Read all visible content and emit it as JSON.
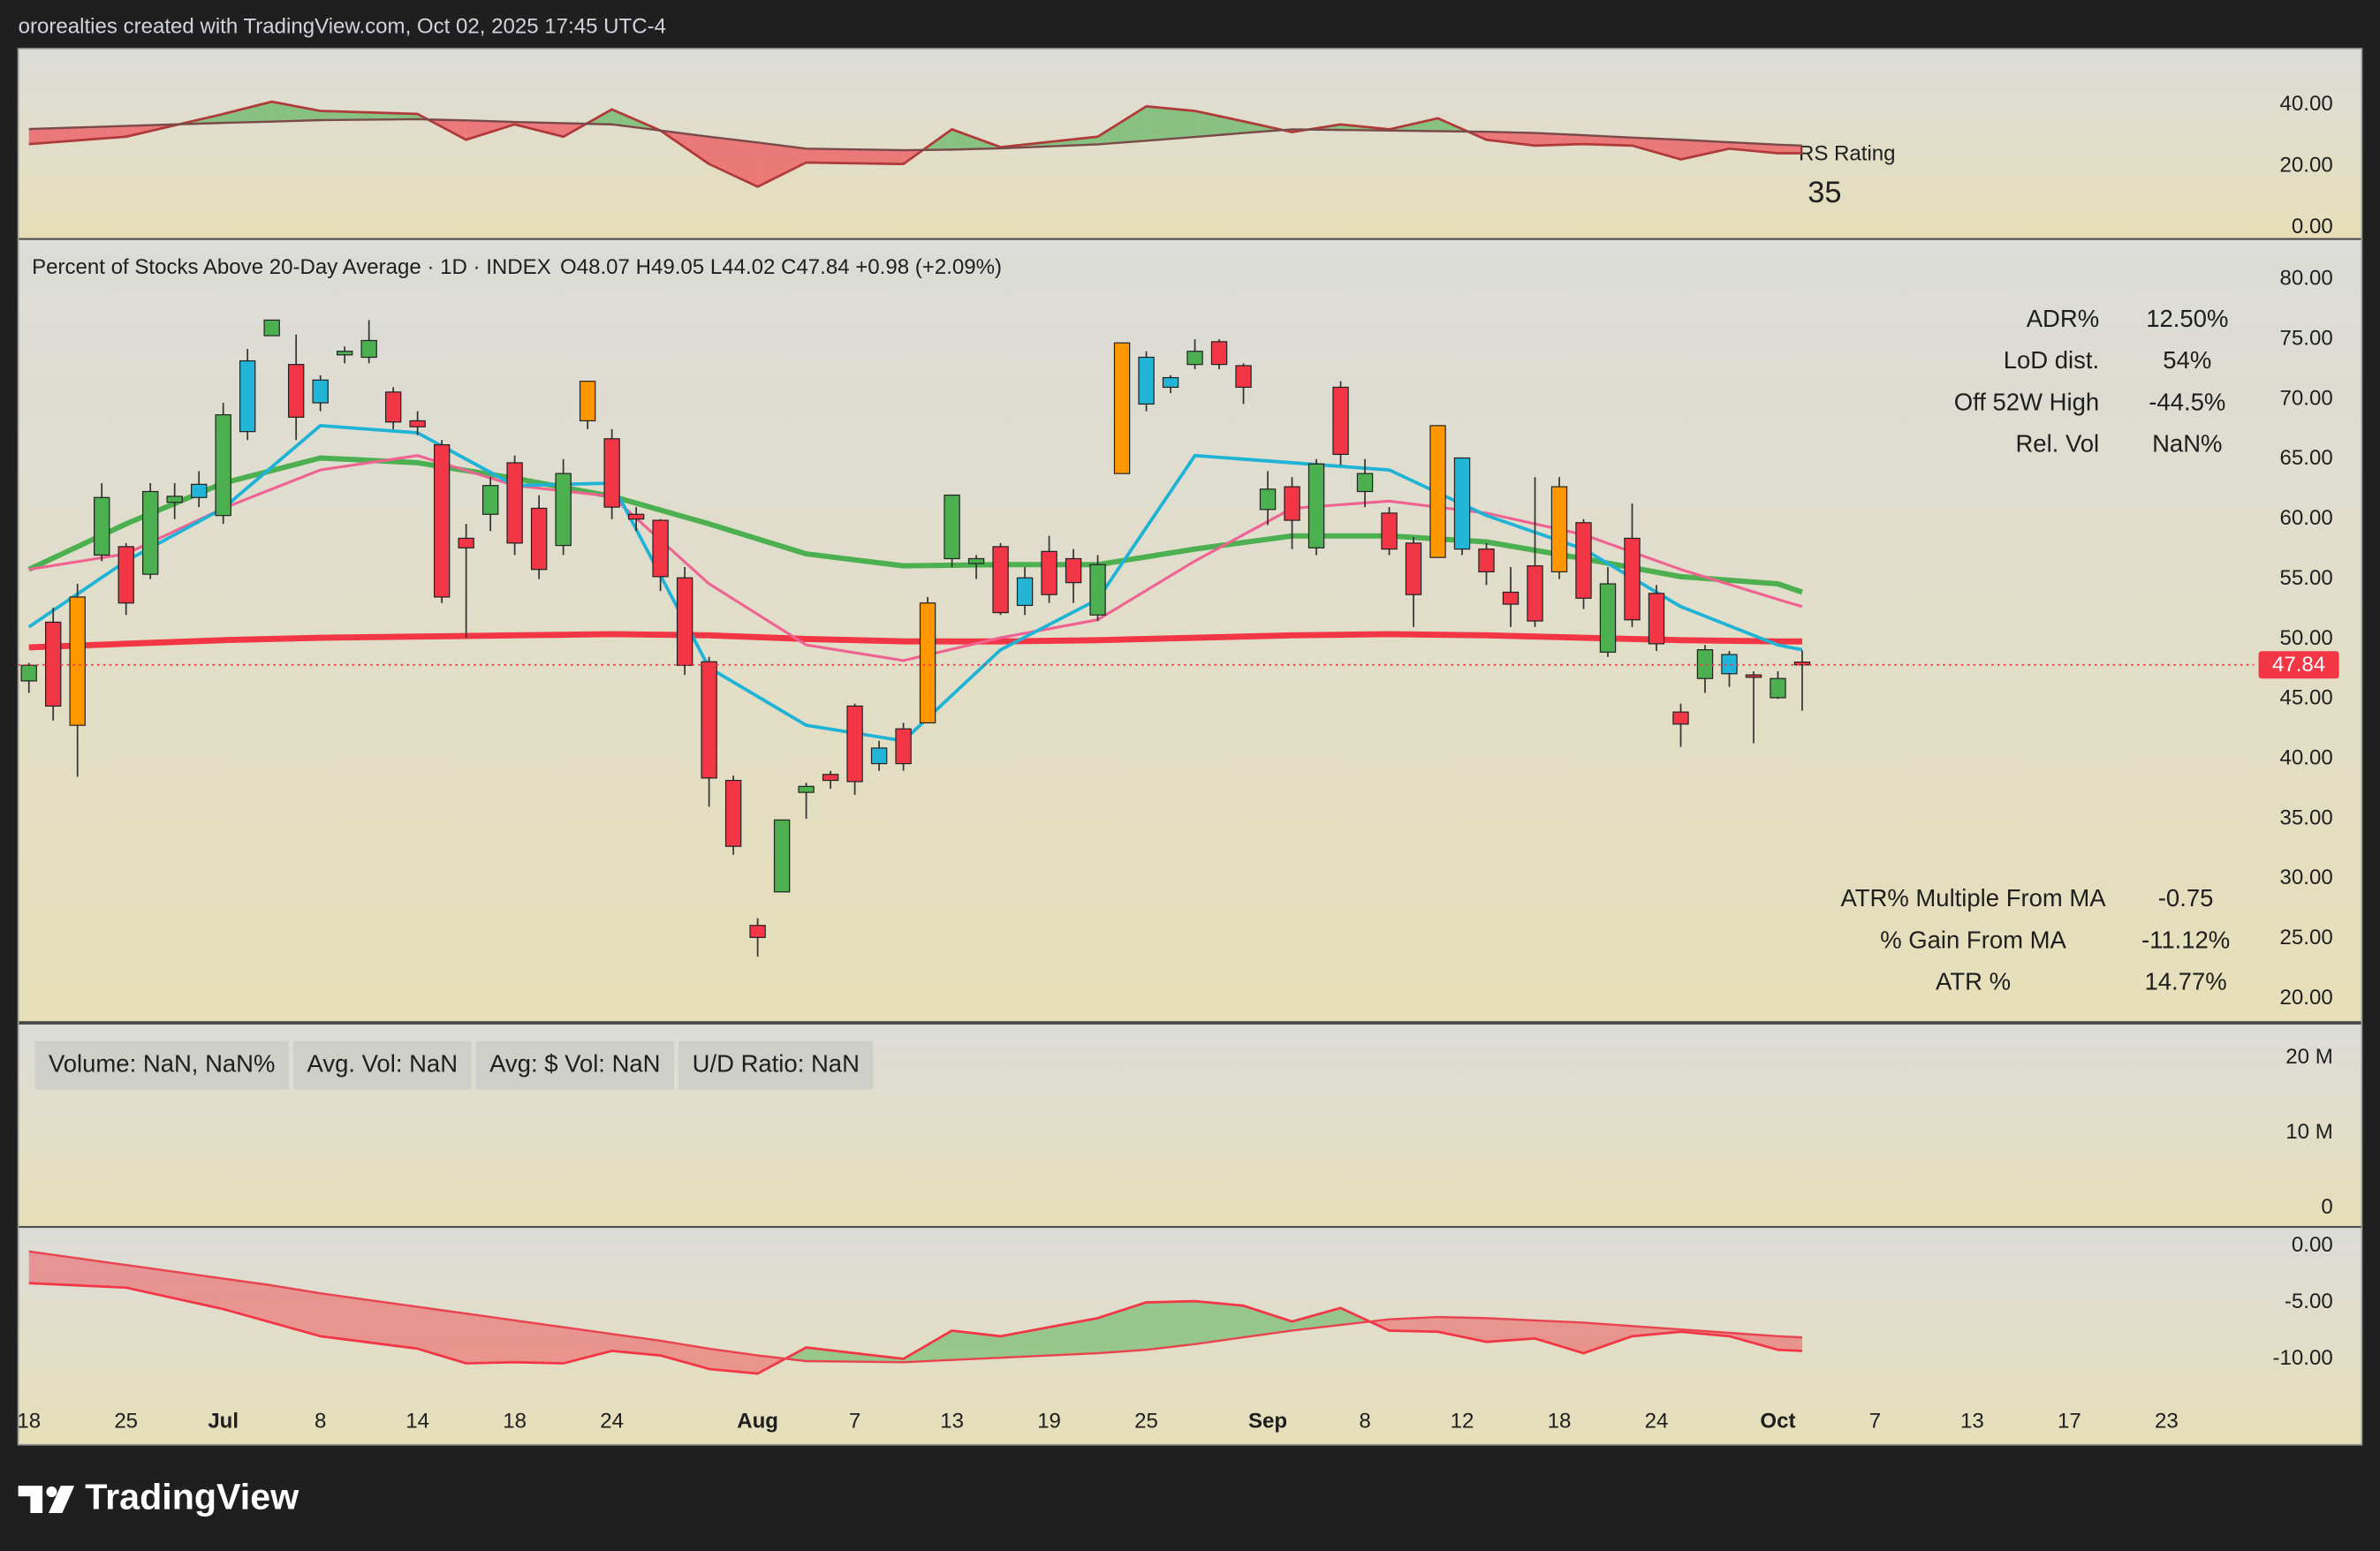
{
  "header": {
    "attribution": "ororealties created with TradingView.com, Oct 02, 2025 17:45 UTC-4"
  },
  "footer": {
    "logo": "TradingView"
  },
  "chart_data": [
    {
      "type": "area-between",
      "rating_label": "RS Rating",
      "rating": 35,
      "x": [
        0,
        4,
        8,
        10,
        12,
        16,
        18,
        20,
        22,
        24,
        26,
        28,
        30,
        32,
        36,
        38,
        40,
        44,
        46,
        48,
        50,
        52,
        54,
        56,
        58,
        60,
        62,
        64,
        66,
        68,
        70,
        72,
        73
      ],
      "xlim": [
        -0.44,
        91.6
      ],
      "ylim": [
        -3.5,
        58.3
      ],
      "yticks": [
        {
          "value": 40,
          "label": "40.00"
        },
        {
          "value": 20,
          "label": "20.00"
        },
        {
          "value": 0,
          "label": "0.00"
        }
      ],
      "fill_up": "#4caf5099",
      "fill_down": "#f2364599",
      "series": [
        {
          "color": "#b03a3a",
          "values": [
            27.2,
            29.6,
            37.0,
            41.0,
            38.0,
            37.0,
            28.6,
            33.6,
            29.6,
            38.5,
            31.6,
            20.7,
            13.3,
            21.2,
            20.7,
            32.0,
            26.2,
            29.6,
            39.5,
            38.0,
            34.6,
            31.1,
            33.6,
            32.0,
            35.6,
            28.6,
            26.7,
            27.2,
            26.7,
            22.2,
            25.7,
            24.2,
            24.2
          ]
        },
        {
          "color": "#7a4a4a",
          "values": [
            32.1,
            33.1,
            34.1,
            34.5,
            35.0,
            35.3,
            34.9,
            34.4,
            34.0,
            33.6,
            31.6,
            29.6,
            27.7,
            25.7,
            25.2,
            25.4,
            25.8,
            27.1,
            28.3,
            29.5,
            30.8,
            32.0,
            31.8,
            31.6,
            31.4,
            31.2,
            30.8,
            30.1,
            29.3,
            28.6,
            27.8,
            27.0,
            26.7
          ]
        }
      ]
    },
    {
      "type": "candlestick",
      "title": "Percent of Stocks Above 20-Day Average · 1D · INDEX",
      "ohlc_label": "O48.07  H49.05  L44.02  C47.84  +0.98 (+2.09%)",
      "xlim": [
        -0.44,
        91.6
      ],
      "ylim": [
        18.1,
        83.3
      ],
      "yticks": [
        {
          "value": 80,
          "label": "80.00"
        },
        {
          "value": 75,
          "label": "75.00"
        },
        {
          "value": 70,
          "label": "70.00"
        },
        {
          "value": 65,
          "label": "65.00"
        },
        {
          "value": 60,
          "label": "60.00"
        },
        {
          "value": 55,
          "label": "55.00"
        },
        {
          "value": 50,
          "label": "50.00"
        },
        {
          "value": 45,
          "label": "45.00"
        },
        {
          "value": 40,
          "label": "40.00"
        },
        {
          "value": 35,
          "label": "35.00"
        },
        {
          "value": 30,
          "label": "30.00"
        },
        {
          "value": 25,
          "label": "25.00"
        },
        {
          "value": 20,
          "label": "20.00"
        }
      ],
      "xticks": [
        {
          "value": 0,
          "label": "18"
        },
        {
          "value": 4,
          "label": "25"
        },
        {
          "value": 8,
          "label": "Jul"
        },
        {
          "value": 12,
          "label": "8"
        },
        {
          "value": 16,
          "label": "14"
        },
        {
          "value": 20,
          "label": "18"
        },
        {
          "value": 24,
          "label": "24"
        },
        {
          "value": 30,
          "label": "Aug"
        },
        {
          "value": 34,
          "label": "7"
        },
        {
          "value": 38,
          "label": "13"
        },
        {
          "value": 42,
          "label": "19"
        },
        {
          "value": 46,
          "label": "25"
        },
        {
          "value": 51,
          "label": "Sep"
        },
        {
          "value": 55,
          "label": "8"
        },
        {
          "value": 59,
          "label": "12"
        },
        {
          "value": 63,
          "label": "18"
        },
        {
          "value": 67,
          "label": "24"
        },
        {
          "value": 72,
          "label": "Oct"
        },
        {
          "value": 76,
          "label": "7"
        },
        {
          "value": 80,
          "label": "13"
        },
        {
          "value": 84,
          "label": "17"
        },
        {
          "value": 88,
          "label": "23"
        }
      ],
      "x": [
        0,
        1,
        2,
        3,
        4,
        5,
        6,
        7,
        8,
        9,
        10,
        11,
        12,
        13,
        14,
        15,
        16,
        17,
        18,
        19,
        20,
        21,
        22,
        23,
        24,
        25,
        26,
        27,
        28,
        29,
        30,
        31,
        32,
        33,
        34,
        35,
        36,
        37,
        38,
        39,
        40,
        41,
        42,
        43,
        44,
        45,
        46,
        47,
        48,
        49,
        50,
        51,
        52,
        53,
        54,
        55,
        56,
        57,
        58,
        59,
        60,
        61,
        62,
        63,
        64,
        65,
        66,
        67,
        68,
        69,
        70,
        71,
        72,
        73
      ],
      "open": [
        46.5,
        51.4,
        42.8,
        57.0,
        57.7,
        55.4,
        61.4,
        61.8,
        60.3,
        67.3,
        75.3,
        72.9,
        69.7,
        73.7,
        73.5,
        70.6,
        68.2,
        66.2,
        58.4,
        60.4,
        64.7,
        60.9,
        57.8,
        68.2,
        66.7,
        60.4,
        59.9,
        55.1,
        48.1,
        38.2,
        26.1,
        28.9,
        37.2,
        38.7,
        44.4,
        39.6,
        42.5,
        43.0,
        56.7,
        56.3,
        57.7,
        52.8,
        57.3,
        56.7,
        52.0,
        63.8,
        69.6,
        71.0,
        72.9,
        74.8,
        72.8,
        60.8,
        62.7,
        57.6,
        71.0,
        62.3,
        60.5,
        58.0,
        56.8,
        65.1,
        57.5,
        53.9,
        56.1,
        55.6,
        59.7,
        48.9,
        58.4,
        53.8,
        43.9,
        46.7,
        47.1,
        47.0,
        45.1,
        48.07
      ],
      "high": [
        48.0,
        52.6,
        54.6,
        63.0,
        58.0,
        63.0,
        63.0,
        64.0,
        69.7,
        74.2,
        76.6,
        75.4,
        72.0,
        74.4,
        76.6,
        71.0,
        69.0,
        66.6,
        59.6,
        63.5,
        65.3,
        62.0,
        65.0,
        71.5,
        67.5,
        61.0,
        60.0,
        56.0,
        48.5,
        38.6,
        26.7,
        34.9,
        38.0,
        39.0,
        44.6,
        41.5,
        43.0,
        53.5,
        62.0,
        57.0,
        58.0,
        56.0,
        58.6,
        57.5,
        57.0,
        74.7,
        74.0,
        72.0,
        75.0,
        75.0,
        73.0,
        64.0,
        63.5,
        65.0,
        71.5,
        65.0,
        61.0,
        58.5,
        67.8,
        65.1,
        58.0,
        56.0,
        63.5,
        63.5,
        60.0,
        56.0,
        61.3,
        54.5,
        44.6,
        49.5,
        49.0,
        47.3,
        47.3,
        49.05
      ],
      "low": [
        45.5,
        43.2,
        38.5,
        56.5,
        52.0,
        55.0,
        60.0,
        61.0,
        59.6,
        66.6,
        75.3,
        66.6,
        69.0,
        73.0,
        73.0,
        67.5,
        67.0,
        53.0,
        50.1,
        59.0,
        57.0,
        55.0,
        57.0,
        67.5,
        60.0,
        59.0,
        54.0,
        47.0,
        36.0,
        32.0,
        23.5,
        28.9,
        35.0,
        37.5,
        37.0,
        39.0,
        39.0,
        43.0,
        56.0,
        55.0,
        52.0,
        52.0,
        53.0,
        53.0,
        51.5,
        63.8,
        69.0,
        70.5,
        72.5,
        72.5,
        69.6,
        59.5,
        57.5,
        57.0,
        64.5,
        61.0,
        57.0,
        51.0,
        56.8,
        57.0,
        54.5,
        51.0,
        51.0,
        55.0,
        52.5,
        48.5,
        51.0,
        49.0,
        41.0,
        45.5,
        46.0,
        41.3,
        45.0,
        44.02
      ],
      "close": [
        47.8,
        44.4,
        53.5,
        61.8,
        53.0,
        62.3,
        61.9,
        62.9,
        68.7,
        73.2,
        76.6,
        68.5,
        71.6,
        74.0,
        74.9,
        68.1,
        67.7,
        53.5,
        57.6,
        62.8,
        58.0,
        55.8,
        63.8,
        71.5,
        61.0,
        60.0,
        55.2,
        47.8,
        38.4,
        32.7,
        25.1,
        34.9,
        37.7,
        38.2,
        38.1,
        40.9,
        39.6,
        53.0,
        62.0,
        56.7,
        52.2,
        55.1,
        53.7,
        54.7,
        56.2,
        74.7,
        73.5,
        71.8,
        74.0,
        72.9,
        71.0,
        62.5,
        59.9,
        64.6,
        65.4,
        63.8,
        57.5,
        53.7,
        67.8,
        57.5,
        55.6,
        52.9,
        51.5,
        62.7,
        53.4,
        54.6,
        51.6,
        49.6,
        42.9,
        49.1,
        48.7,
        46.8,
        46.7,
        47.84
      ],
      "colors": [
        "#4caf50",
        "#f23645",
        "#ff9800",
        "#4caf50",
        "#f23645",
        "#4caf50",
        "#4caf50",
        "#22b5d8",
        "#4caf50",
        "#22b5d8",
        "#4caf50",
        "#f23645",
        "#22b5d8",
        "#4caf50",
        "#4caf50",
        "#f23645",
        "#f23645",
        "#f23645",
        "#f23645",
        "#4caf50",
        "#f23645",
        "#f23645",
        "#4caf50",
        "#ff9800",
        "#f23645",
        "#f23645",
        "#f23645",
        "#f23645",
        "#f23645",
        "#f23645",
        "#f23645",
        "#4caf50",
        "#4caf50",
        "#f23645",
        "#f23645",
        "#22b5d8",
        "#f23645",
        "#ff9800",
        "#4caf50",
        "#4caf50",
        "#f23645",
        "#22b5d8",
        "#f23645",
        "#f23645",
        "#4caf50",
        "#ff9800",
        "#22b5d8",
        "#22b5d8",
        "#4caf50",
        "#f23645",
        "#f23645",
        "#4caf50",
        "#f23645",
        "#4caf50",
        "#f23645",
        "#4caf50",
        "#f23645",
        "#f23645",
        "#ff9800",
        "#22b5d8",
        "#f23645",
        "#f23645",
        "#f23645",
        "#ff9800",
        "#f23645",
        "#4caf50",
        "#f23645",
        "#f23645",
        "#f23645",
        "#4caf50",
        "#22b5d8",
        "#f23645",
        "#4caf50",
        "#f23645"
      ],
      "last_price_color": "#f23645",
      "lines": [
        {
          "color": "#f23645",
          "width": 4,
          "x": [
            0,
            4,
            8,
            12,
            16,
            20,
            24,
            28,
            32,
            36,
            40,
            44,
            48,
            52,
            56,
            60,
            64,
            68,
            72,
            73
          ],
          "values": [
            49.3,
            49.6,
            49.9,
            50.1,
            50.2,
            50.3,
            50.4,
            50.3,
            50.0,
            49.8,
            49.8,
            49.9,
            50.1,
            50.3,
            50.4,
            50.3,
            50.1,
            49.9,
            49.8,
            49.8
          ]
        },
        {
          "color": "#4caf50",
          "width": 3.5,
          "x": [
            0,
            4,
            8,
            12,
            16,
            20,
            24,
            28,
            32,
            36,
            40,
            44,
            48,
            52,
            56,
            60,
            64,
            68,
            72,
            73
          ],
          "values": [
            55.8,
            59.6,
            63.0,
            65.1,
            64.7,
            63.4,
            61.9,
            59.6,
            57.1,
            56.1,
            56.2,
            56.2,
            57.5,
            58.6,
            58.6,
            58.1,
            56.7,
            55.2,
            54.6,
            53.9
          ]
        },
        {
          "color": "#f06292",
          "width": 1.8,
          "x": [
            0,
            4,
            8,
            12,
            16,
            20,
            24,
            28,
            32,
            36,
            40,
            44,
            48,
            52,
            56,
            60,
            64,
            68,
            72,
            73
          ],
          "values": [
            55.8,
            57.1,
            60.9,
            64.1,
            65.3,
            62.8,
            61.9,
            54.6,
            49.5,
            48.2,
            50.1,
            51.6,
            56.5,
            60.9,
            61.5,
            60.5,
            58.7,
            55.8,
            53.3,
            52.7
          ]
        },
        {
          "color": "#1fb3d6",
          "width": 2.2,
          "x": [
            0,
            4,
            8,
            12,
            16,
            20,
            24,
            28,
            32,
            36,
            40,
            44,
            48,
            52,
            56,
            60,
            64,
            68,
            72,
            73
          ],
          "values": [
            51.0,
            56.5,
            60.9,
            67.8,
            67.2,
            62.8,
            63.0,
            47.6,
            42.8,
            41.5,
            49.1,
            53.3,
            65.3,
            64.7,
            64.1,
            60.3,
            57.5,
            52.7,
            49.5,
            49.1
          ]
        }
      ],
      "stats_top": [
        [
          "ADR%",
          "12.50%"
        ],
        [
          "LoD dist.",
          "54%"
        ],
        [
          "Off 52W High",
          "-44.5%"
        ],
        [
          "Rel. Vol",
          "NaN%"
        ]
      ],
      "stats_bottom": [
        [
          "ATR% Multiple From MA",
          "-0.75"
        ],
        [
          "% Gain From MA",
          "-11.12%"
        ],
        [
          "ATR %",
          "14.77%"
        ]
      ]
    },
    {
      "type": "volume",
      "ylim": [
        -2420000,
        24440000
      ],
      "yticks": [
        {
          "value": 20000000,
          "label": "20 M"
        },
        {
          "value": 10000000,
          "label": "10 M"
        },
        0
      ],
      "badges": [
        "Volume: NaN, NaN%",
        "Avg. Vol: NaN",
        "Avg: $ Vol: NaN",
        "U/D Ratio: NaN"
      ]
    },
    {
      "type": "area-between",
      "x": [
        0,
        4,
        8,
        10,
        12,
        16,
        18,
        20,
        22,
        24,
        26,
        28,
        30,
        32,
        36,
        38,
        40,
        44,
        46,
        48,
        50,
        52,
        54,
        56,
        58,
        60,
        62,
        64,
        66,
        68,
        70,
        72,
        73
      ],
      "xlim": [
        -0.44,
        91.6
      ],
      "ylim": [
        -17.6,
        1.6
      ],
      "yticks": [
        {
          "value": 0,
          "label": "0.00"
        },
        {
          "value": -5,
          "label": "-5.00"
        },
        {
          "value": -10,
          "label": "-10.00"
        }
      ],
      "fill_up": "#4caf5080",
      "fill_down": "#f2364570",
      "series": [
        {
          "color": "#f23645",
          "values": [
            -3.3,
            -3.7,
            -5.6,
            -6.8,
            -8.0,
            -9.1,
            -10.4,
            -10.3,
            -10.4,
            -9.3,
            -9.7,
            -10.9,
            -11.3,
            -9.0,
            -10.0,
            -7.5,
            -8.0,
            -6.4,
            -5.0,
            -4.9,
            -5.3,
            -6.7,
            -5.5,
            -7.5,
            -7.6,
            -8.5,
            -8.2,
            -9.5,
            -8.0,
            -7.6,
            -8.0,
            -9.2,
            -9.3
          ]
        },
        {
          "color": "#e8434f",
          "values": [
            -0.5,
            -1.7,
            -2.9,
            -3.5,
            -4.2,
            -5.4,
            -6.0,
            -6.6,
            -7.2,
            -7.8,
            -8.4,
            -9.1,
            -9.7,
            -10.2,
            -10.3,
            -10.1,
            -9.9,
            -9.5,
            -9.2,
            -8.7,
            -8.1,
            -7.5,
            -7.0,
            -6.5,
            -6.3,
            -6.4,
            -6.6,
            -6.8,
            -7.1,
            -7.4,
            -7.7,
            -8.0,
            -8.1
          ]
        }
      ]
    }
  ]
}
